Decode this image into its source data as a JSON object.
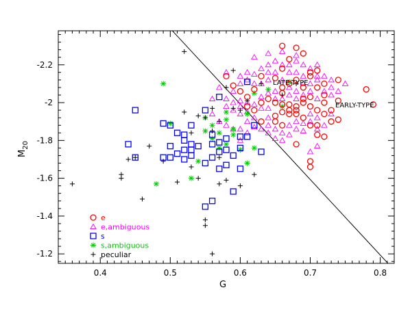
{
  "chart_data": {
    "type": "scatter",
    "xlabel": "G",
    "ylabel": "M",
    "ylabel_sub": "20",
    "xlim": [
      0.34,
      0.82
    ],
    "ylim": [
      -2.38,
      -1.15
    ],
    "y_inverted": true,
    "x_ticks": [
      "0.4",
      "0.5",
      "0.6",
      "0.7",
      "0.8"
    ],
    "x_tick_values": [
      0.4,
      0.5,
      0.6,
      0.7,
      0.8
    ],
    "y_ticks": [
      "-1.2",
      "-1.4",
      "-1.6",
      "-1.8",
      "-2",
      "-2.2"
    ],
    "y_tick_values": [
      -1.2,
      -1.4,
      -1.6,
      -1.8,
      -2.0,
      -2.2
    ],
    "annotations": {
      "late": "LATE-TYPE",
      "early": "EARLY-TYPE"
    },
    "divider": {
      "x1": 0.503,
      "y1": -2.38,
      "x2": 0.811,
      "y2": -1.15
    },
    "legend_position": "bottom-left",
    "series": [
      {
        "name": "e",
        "marker": "circle",
        "color": "#ff0000",
        "points": [
          [
            0.66,
            -2.3
          ],
          [
            0.68,
            -2.29
          ],
          [
            0.7,
            -1.66
          ],
          [
            0.7,
            -1.69
          ],
          [
            0.68,
            -1.78
          ],
          [
            0.65,
            -1.9
          ],
          [
            0.65,
            -1.93
          ],
          [
            0.66,
            -1.88
          ],
          [
            0.67,
            -1.94
          ],
          [
            0.69,
            -1.92
          ],
          [
            0.7,
            -1.88
          ],
          [
            0.71,
            -1.83
          ],
          [
            0.71,
            -1.88
          ],
          [
            0.72,
            -1.82
          ],
          [
            0.72,
            -1.94
          ],
          [
            0.73,
            -1.9
          ],
          [
            0.73,
            -1.96
          ],
          [
            0.74,
            -1.91
          ],
          [
            0.63,
            -1.9
          ],
          [
            0.62,
            -1.96
          ],
          [
            0.63,
            -2.0
          ],
          [
            0.64,
            -2.02
          ],
          [
            0.65,
            -2.0
          ],
          [
            0.66,
            -1.95
          ],
          [
            0.66,
            -1.99
          ],
          [
            0.67,
            -1.96
          ],
          [
            0.67,
            -1.99
          ],
          [
            0.68,
            -1.94
          ],
          [
            0.68,
            -1.96
          ],
          [
            0.68,
            -1.98
          ],
          [
            0.69,
            -2.0
          ],
          [
            0.69,
            -2.02
          ],
          [
            0.7,
            -1.98
          ],
          [
            0.7,
            -2.03
          ],
          [
            0.71,
            -1.96
          ],
          [
            0.72,
            -2.0
          ],
          [
            0.72,
            -2.04
          ],
          [
            0.74,
            -2.01
          ],
          [
            0.61,
            -1.98
          ],
          [
            0.61,
            -2.03
          ],
          [
            0.6,
            -2.06
          ],
          [
            0.59,
            -2.09
          ],
          [
            0.58,
            -2.14
          ],
          [
            0.62,
            -2.07
          ],
          [
            0.66,
            -2.05
          ],
          [
            0.66,
            -2.08
          ],
          [
            0.67,
            -2.1
          ],
          [
            0.68,
            -2.12
          ],
          [
            0.69,
            -2.08
          ],
          [
            0.71,
            -2.08
          ],
          [
            0.72,
            -2.1
          ],
          [
            0.74,
            -2.12
          ],
          [
            0.78,
            -2.07
          ],
          [
            0.79,
            -1.99
          ],
          [
            0.7,
            -2.16
          ],
          [
            0.71,
            -2.17
          ],
          [
            0.67,
            -2.23
          ],
          [
            0.69,
            -2.26
          ],
          [
            0.65,
            -2.13
          ],
          [
            0.63,
            -2.14
          ],
          [
            0.66,
            -2.18
          ],
          [
            0.7,
            -2.14
          ]
        ]
      },
      {
        "name": "e,ambiguous",
        "marker": "triangle",
        "color": "#ff00ff",
        "points": [
          [
            0.62,
            -1.87
          ],
          [
            0.62,
            -1.92
          ],
          [
            0.63,
            -1.86
          ],
          [
            0.64,
            -1.84
          ],
          [
            0.64,
            -1.88
          ],
          [
            0.64,
            -1.92
          ],
          [
            0.65,
            -1.86
          ],
          [
            0.65,
            -1.81
          ],
          [
            0.66,
            -1.8
          ],
          [
            0.66,
            -1.84
          ],
          [
            0.67,
            -1.88
          ],
          [
            0.67,
            -1.83
          ],
          [
            0.68,
            -1.86
          ],
          [
            0.68,
            -1.9
          ],
          [
            0.69,
            -1.85
          ],
          [
            0.69,
            -1.89
          ],
          [
            0.7,
            -1.9
          ],
          [
            0.7,
            -1.94
          ],
          [
            0.71,
            -1.92
          ],
          [
            0.71,
            -1.86
          ],
          [
            0.72,
            -1.88
          ],
          [
            0.73,
            -1.94
          ],
          [
            0.61,
            -1.9
          ],
          [
            0.61,
            -1.95
          ],
          [
            0.6,
            -1.94
          ],
          [
            0.6,
            -1.98
          ],
          [
            0.59,
            -1.96
          ],
          [
            0.59,
            -2.0
          ],
          [
            0.58,
            -1.98
          ],
          [
            0.58,
            -2.02
          ],
          [
            0.6,
            -2.01
          ],
          [
            0.61,
            -2.0
          ],
          [
            0.62,
            -1.99
          ],
          [
            0.63,
            -1.97
          ],
          [
            0.63,
            -2.03
          ],
          [
            0.64,
            -1.97
          ],
          [
            0.64,
            -2.05
          ],
          [
            0.65,
            -2.02
          ],
          [
            0.65,
            -2.06
          ],
          [
            0.66,
            -2.02
          ],
          [
            0.67,
            -2.04
          ],
          [
            0.67,
            -2.08
          ],
          [
            0.68,
            -2.02
          ],
          [
            0.68,
            -2.06
          ],
          [
            0.69,
            -2.04
          ],
          [
            0.69,
            -2.1
          ],
          [
            0.7,
            -2.06
          ],
          [
            0.7,
            -2.1
          ],
          [
            0.71,
            -2.02
          ],
          [
            0.71,
            -2.12
          ],
          [
            0.72,
            -2.06
          ],
          [
            0.73,
            -2.04
          ],
          [
            0.73,
            -2.08
          ],
          [
            0.74,
            -2.06
          ],
          [
            0.75,
            -2.1
          ],
          [
            0.59,
            -2.06
          ],
          [
            0.6,
            -2.1
          ],
          [
            0.6,
            -2.14
          ],
          [
            0.61,
            -2.12
          ],
          [
            0.61,
            -2.16
          ],
          [
            0.62,
            -2.1
          ],
          [
            0.62,
            -2.15
          ],
          [
            0.63,
            -2.1
          ],
          [
            0.63,
            -2.18
          ],
          [
            0.64,
            -2.12
          ],
          [
            0.64,
            -2.16
          ],
          [
            0.64,
            -2.2
          ],
          [
            0.65,
            -2.16
          ],
          [
            0.65,
            -2.22
          ],
          [
            0.66,
            -2.12
          ],
          [
            0.66,
            -2.2
          ],
          [
            0.67,
            -2.16
          ],
          [
            0.67,
            -2.2
          ],
          [
            0.68,
            -2.16
          ],
          [
            0.68,
            -2.22
          ],
          [
            0.69,
            -2.14
          ],
          [
            0.69,
            -2.2
          ],
          [
            0.7,
            -2.18
          ],
          [
            0.71,
            -2.14
          ],
          [
            0.72,
            -2.14
          ],
          [
            0.73,
            -2.12
          ],
          [
            0.56,
            -1.94
          ],
          [
            0.57,
            -1.9
          ],
          [
            0.58,
            -1.88
          ],
          [
            0.59,
            -1.86
          ],
          [
            0.56,
            -2.02
          ],
          [
            0.57,
            -2.08
          ],
          [
            0.58,
            -2.16
          ],
          [
            0.62,
            -2.24
          ],
          [
            0.64,
            -2.26
          ],
          [
            0.66,
            -2.27
          ],
          [
            0.68,
            -2.25
          ],
          [
            0.71,
            -2.2
          ],
          [
            0.7,
            -1.74
          ],
          [
            0.71,
            -1.77
          ],
          [
            0.6,
            -1.8
          ],
          [
            0.61,
            -1.84
          ],
          [
            0.6,
            -1.86
          ]
        ]
      },
      {
        "name": "s",
        "marker": "square",
        "color": "#0000ff",
        "points": [
          [
            0.44,
            -1.78
          ],
          [
            0.45,
            -1.71
          ],
          [
            0.45,
            -1.96
          ],
          [
            0.49,
            -1.89
          ],
          [
            0.49,
            -1.71
          ],
          [
            0.5,
            -1.71
          ],
          [
            0.5,
            -1.77
          ],
          [
            0.5,
            -1.88
          ],
          [
            0.51,
            -1.73
          ],
          [
            0.52,
            -1.7
          ],
          [
            0.52,
            -1.75
          ],
          [
            0.52,
            -1.8
          ],
          [
            0.52,
            -1.83
          ],
          [
            0.53,
            -1.72
          ],
          [
            0.53,
            -1.75
          ],
          [
            0.53,
            -1.78
          ],
          [
            0.53,
            -1.88
          ],
          [
            0.54,
            -1.77
          ],
          [
            0.55,
            -1.45
          ],
          [
            0.55,
            -1.68
          ],
          [
            0.56,
            -1.48
          ],
          [
            0.56,
            -1.71
          ],
          [
            0.56,
            -1.78
          ],
          [
            0.56,
            -1.83
          ],
          [
            0.57,
            -1.65
          ],
          [
            0.57,
            -1.74
          ],
          [
            0.57,
            -1.79
          ],
          [
            0.58,
            -1.67
          ],
          [
            0.58,
            -1.75
          ],
          [
            0.58,
            -1.81
          ],
          [
            0.59,
            -1.53
          ],
          [
            0.59,
            -1.72
          ],
          [
            0.6,
            -1.65
          ],
          [
            0.6,
            -1.76
          ],
          [
            0.6,
            -1.82
          ],
          [
            0.61,
            -1.82
          ],
          [
            0.62,
            -1.88
          ],
          [
            0.63,
            -1.74
          ],
          [
            0.61,
            -2.11
          ],
          [
            0.57,
            -2.03
          ],
          [
            0.55,
            -1.96
          ],
          [
            0.51,
            -1.84
          ]
        ]
      },
      {
        "name": "s,ambiguous",
        "marker": "asterisk",
        "color": "#00cc00",
        "points": [
          [
            0.48,
            -1.57
          ],
          [
            0.49,
            -2.1
          ],
          [
            0.5,
            -1.89
          ],
          [
            0.53,
            -1.6
          ],
          [
            0.54,
            -1.69
          ],
          [
            0.55,
            -1.85
          ],
          [
            0.55,
            -1.92
          ],
          [
            0.56,
            -1.81
          ],
          [
            0.56,
            -1.88
          ],
          [
            0.57,
            -1.76
          ],
          [
            0.57,
            -1.84
          ],
          [
            0.58,
            -1.78
          ],
          [
            0.58,
            -1.91
          ],
          [
            0.58,
            -1.95
          ],
          [
            0.59,
            -1.86
          ],
          [
            0.59,
            -1.83
          ],
          [
            0.6,
            -1.75
          ],
          [
            0.61,
            -1.68
          ],
          [
            0.62,
            -1.76
          ],
          [
            0.61,
            -1.94
          ],
          [
            0.64,
            -2.07
          ],
          [
            0.66,
            -1.98
          ],
          [
            0.67,
            -2.11
          ],
          [
            0.62,
            -2.05
          ]
        ]
      },
      {
        "name": "peculiar",
        "marker": "plus",
        "color": "#000000",
        "points": [
          [
            0.36,
            -1.57
          ],
          [
            0.43,
            -1.6
          ],
          [
            0.43,
            -1.62
          ],
          [
            0.44,
            -1.7
          ],
          [
            0.45,
            -1.71
          ],
          [
            0.46,
            -1.49
          ],
          [
            0.47,
            -1.77
          ],
          [
            0.49,
            -1.69
          ],
          [
            0.51,
            -1.58
          ],
          [
            0.53,
            -1.66
          ],
          [
            0.54,
            -1.6
          ],
          [
            0.55,
            -1.35
          ],
          [
            0.55,
            -1.38
          ],
          [
            0.56,
            -1.2
          ],
          [
            0.57,
            -1.57
          ],
          [
            0.58,
            -1.59
          ],
          [
            0.6,
            -1.56
          ],
          [
            0.62,
            -1.62
          ],
          [
            0.52,
            -2.27
          ],
          [
            0.52,
            -1.95
          ],
          [
            0.53,
            -1.84
          ],
          [
            0.54,
            -1.93
          ],
          [
            0.55,
            -1.92
          ],
          [
            0.56,
            -1.97
          ],
          [
            0.57,
            -1.9
          ],
          [
            0.58,
            -2.08
          ],
          [
            0.59,
            -1.97
          ],
          [
            0.59,
            -2.17
          ],
          [
            0.6,
            -1.96
          ],
          [
            0.61,
            -2.01
          ],
          [
            0.63,
            -2.1
          ],
          [
            0.56,
            -1.85
          ],
          [
            0.57,
            -1.71
          ],
          [
            0.66,
            -2.04
          ],
          [
            0.68,
            -2.1
          ]
        ]
      }
    ]
  }
}
